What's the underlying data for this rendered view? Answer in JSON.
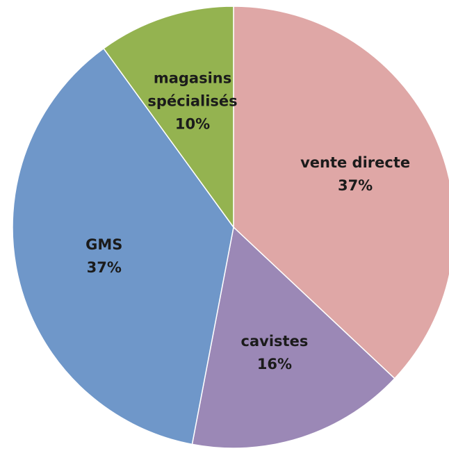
{
  "chart_data": {
    "type": "pie",
    "categories": [
      "vente directe",
      "cavistes",
      "GMS",
      "magasins spécialisés"
    ],
    "values": [
      37,
      16,
      37,
      10
    ],
    "value_labels": [
      "37%",
      "16%",
      "37%",
      "10%"
    ],
    "colors": [
      "#dfa7a6",
      "#9b88b6",
      "#6f97c9",
      "#94b350"
    ]
  }
}
